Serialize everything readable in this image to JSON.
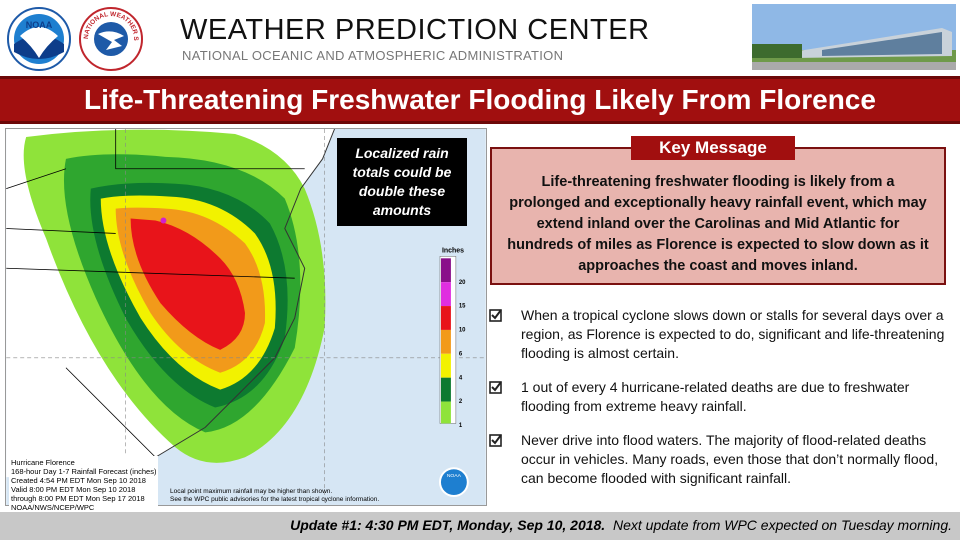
{
  "header": {
    "title": "WEATHER PREDICTION CENTER",
    "subtitle": "NATIONAL OCEANIC AND ATMOSPHERIC ADMINISTRATION",
    "noaa_logo": "NOAA",
    "nws_logo": "NATIONAL WEATHER SERVICE"
  },
  "banner": "Life-Threatening Freshwater Flooding Likely From Florence",
  "map": {
    "callout": "Localized rain totals could be double these amounts",
    "legend_title": "Inches",
    "legend_labels": [
      20,
      15,
      10,
      6,
      4,
      2,
      1
    ],
    "info": [
      "Hurricane Florence",
      "168-hour Day 1-7 Rainfall Forecast (inches)",
      "Created 4:54 PM EDT Mon Sep 10 2018",
      "Valid 8:00 PM EDT Mon Sep 10 2018",
      "through 8:00 PM EDT Mon Sep 17 2018",
      "NOAA/NWS/NCEP/WPC"
    ],
    "note": [
      "Local point maximum rainfall may be higher than shown.",
      "See the WPC public advisories for the latest tropical cyclone information."
    ],
    "logo": "NOAA"
  },
  "key_message": {
    "label": "Key Message",
    "text": "Life-threatening freshwater flooding is likely from a prolonged and exceptionally heavy rainfall event, which may extend inland over the Carolinas and Mid Atlantic for hundreds of miles as Florence is expected to slow down as it approaches the coast and moves inland."
  },
  "bullets": [
    "When a tropical cyclone slows down or stalls for several days over a region, as Florence is expected to do, significant and life-threatening flooding is almost certain.",
    "1 out of every 4 hurricane-related deaths are due to freshwater flooding from extreme heavy rainfall.",
    "Never drive into flood waters. The majority of flood-related deaths occur in vehicles. Many roads, even those that don’t normally flood, can become flooded with significant rainfall."
  ],
  "footer": {
    "update": "Update #1: 4:30 PM EDT, Monday, Sep 10, 2018.",
    "next": "Next update from WPC expected on Tuesday morning."
  }
}
